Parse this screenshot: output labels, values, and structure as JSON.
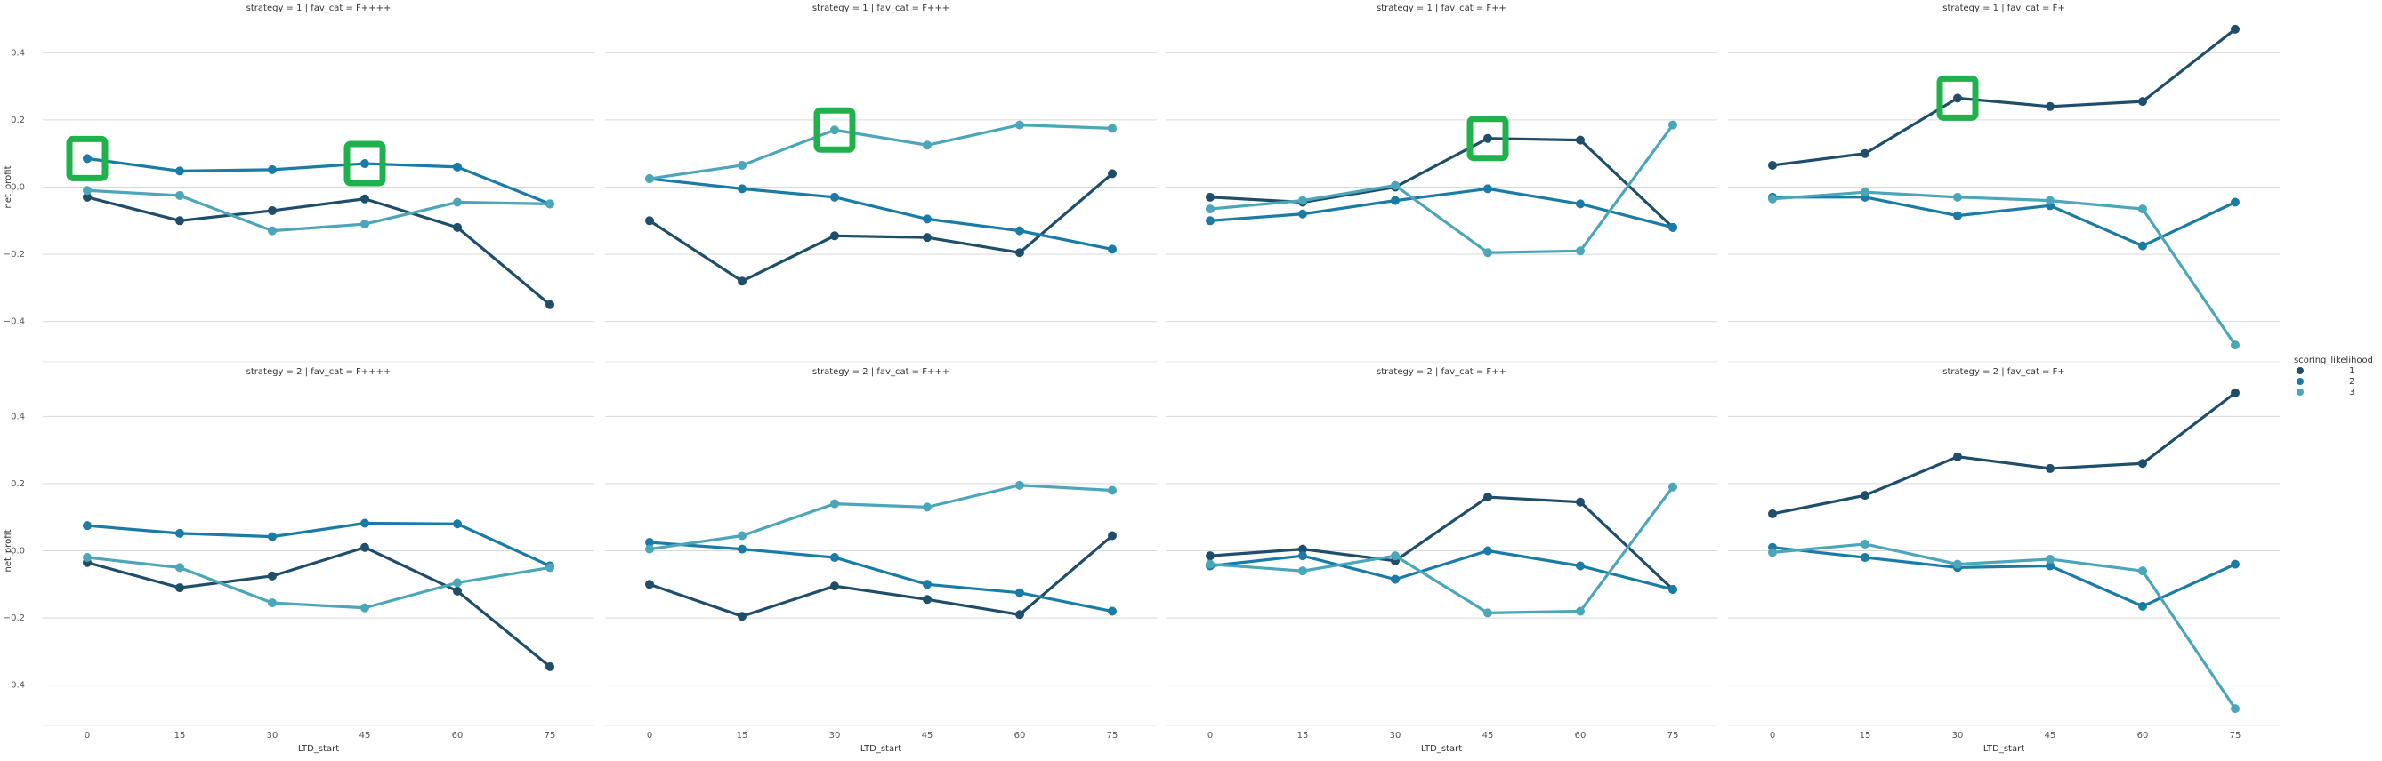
{
  "chart_data": {
    "type": "line",
    "x": [
      0,
      15,
      30,
      45,
      60,
      75
    ],
    "x_tick_labels": [
      "0",
      "15",
      "30",
      "45",
      "60",
      "75"
    ],
    "y_ticks": [
      0.4,
      0.2,
      0.0,
      -0.2,
      -0.4
    ],
    "y_tick_labels": [
      "0.4",
      "0.2",
      "0.0",
      "−0.2",
      "−0.4"
    ],
    "ylim": [
      -0.52,
      0.52
    ],
    "xlabel": "LTD_start",
    "ylabel": "net_profit",
    "legend": {
      "title": "scoring_likelihood",
      "placement": "right",
      "entries": [
        "1",
        "2",
        "3"
      ]
    },
    "colors": {
      "1": "#1f4e6b",
      "2": "#1a7ba6",
      "3": "#4aa6b8"
    },
    "grid": true,
    "highlight_color": "#20b14c",
    "panels": [
      {
        "title": "strategy = 1 | fav_cat = F++++",
        "series": [
          {
            "name": "1",
            "values": [
              -0.03,
              -0.1,
              -0.07,
              -0.035,
              -0.12,
              -0.35
            ]
          },
          {
            "name": "2",
            "values": [
              0.085,
              0.048,
              0.052,
              0.07,
              0.06,
              -0.05
            ]
          },
          {
            "name": "3",
            "values": [
              -0.01,
              -0.025,
              -0.13,
              -0.11,
              -0.045,
              -0.05
            ]
          }
        ],
        "highlights": [
          0,
          3
        ]
      },
      {
        "title": "strategy = 1 | fav_cat = F+++",
        "series": [
          {
            "name": "1",
            "values": [
              -0.1,
              -0.28,
              -0.145,
              -0.15,
              -0.195,
              0.04
            ]
          },
          {
            "name": "2",
            "values": [
              0.025,
              -0.005,
              -0.03,
              -0.095,
              -0.13,
              -0.185
            ]
          },
          {
            "name": "3",
            "values": [
              0.025,
              0.065,
              0.17,
              0.125,
              0.185,
              0.175
            ]
          }
        ],
        "highlights": [
          2
        ]
      },
      {
        "title": "strategy = 1 | fav_cat = F++",
        "series": [
          {
            "name": "1",
            "values": [
              -0.03,
              -0.045,
              0.0,
              0.145,
              0.14,
              -0.12
            ]
          },
          {
            "name": "2",
            "values": [
              -0.1,
              -0.08,
              -0.04,
              -0.005,
              -0.05,
              -0.12
            ]
          },
          {
            "name": "3",
            "values": [
              -0.065,
              -0.04,
              0.005,
              -0.195,
              -0.19,
              0.185
            ]
          }
        ],
        "highlights": [
          3
        ]
      },
      {
        "title": "strategy = 1 | fav_cat = F+",
        "series": [
          {
            "name": "1",
            "values": [
              0.065,
              0.1,
              0.265,
              0.24,
              0.255,
              0.47
            ]
          },
          {
            "name": "2",
            "values": [
              -0.03,
              -0.03,
              -0.085,
              -0.055,
              -0.175,
              -0.045
            ]
          },
          {
            "name": "3",
            "values": [
              -0.035,
              -0.015,
              -0.03,
              -0.04,
              -0.065,
              -0.47
            ]
          }
        ],
        "highlights": [
          2
        ]
      },
      {
        "title": "strategy = 2 | fav_cat = F++++",
        "series": [
          {
            "name": "1",
            "values": [
              -0.035,
              -0.11,
              -0.075,
              0.01,
              -0.12,
              -0.345
            ]
          },
          {
            "name": "2",
            "values": [
              0.075,
              0.052,
              0.042,
              0.082,
              0.08,
              -0.045
            ]
          },
          {
            "name": "3",
            "values": [
              -0.02,
              -0.05,
              -0.155,
              -0.17,
              -0.095,
              -0.05
            ]
          }
        ],
        "highlights": []
      },
      {
        "title": "strategy = 2 | fav_cat = F+++",
        "series": [
          {
            "name": "1",
            "values": [
              -0.1,
              -0.195,
              -0.105,
              -0.145,
              -0.19,
              0.045
            ]
          },
          {
            "name": "2",
            "values": [
              0.025,
              0.005,
              -0.02,
              -0.1,
              -0.125,
              -0.18
            ]
          },
          {
            "name": "3",
            "values": [
              0.005,
              0.045,
              0.14,
              0.13,
              0.195,
              0.18
            ]
          }
        ],
        "highlights": []
      },
      {
        "title": "strategy = 2 | fav_cat = F++",
        "series": [
          {
            "name": "1",
            "values": [
              -0.015,
              0.005,
              -0.03,
              0.16,
              0.145,
              -0.115
            ]
          },
          {
            "name": "2",
            "values": [
              -0.045,
              -0.015,
              -0.085,
              0.0,
              -0.045,
              -0.115
            ]
          },
          {
            "name": "3",
            "values": [
              -0.04,
              -0.06,
              -0.015,
              -0.185,
              -0.18,
              0.19
            ]
          }
        ],
        "highlights": []
      },
      {
        "title": "strategy = 2 | fav_cat = F+",
        "series": [
          {
            "name": "1",
            "values": [
              0.11,
              0.165,
              0.28,
              0.245,
              0.26,
              0.47
            ]
          },
          {
            "name": "2",
            "values": [
              0.01,
              -0.02,
              -0.05,
              -0.045,
              -0.165,
              -0.04
            ]
          },
          {
            "name": "3",
            "values": [
              -0.005,
              0.02,
              -0.04,
              -0.025,
              -0.06,
              -0.47
            ]
          }
        ],
        "highlights": []
      }
    ]
  }
}
